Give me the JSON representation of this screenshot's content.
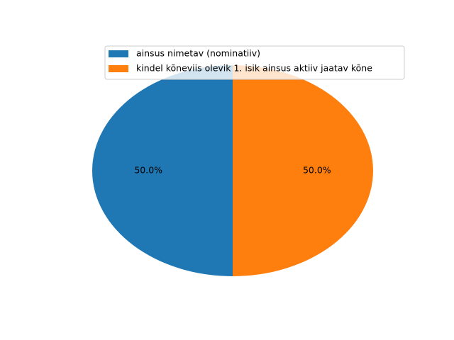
{
  "chart_data": {
    "type": "pie",
    "labels": [
      "ainsus nimetav (nominatiiv)",
      "kindel kõneviis olevik 1. isik ainsus aktiiv jaatav kõne"
    ],
    "values": [
      50,
      50
    ],
    "percent_labels": [
      "50.0%",
      "50.0%"
    ],
    "colors": [
      "#1f77b4",
      "#ff7f0e"
    ],
    "start_angle_deg": 90,
    "direction": "counterclockwise",
    "legend_position": "upper-right"
  }
}
